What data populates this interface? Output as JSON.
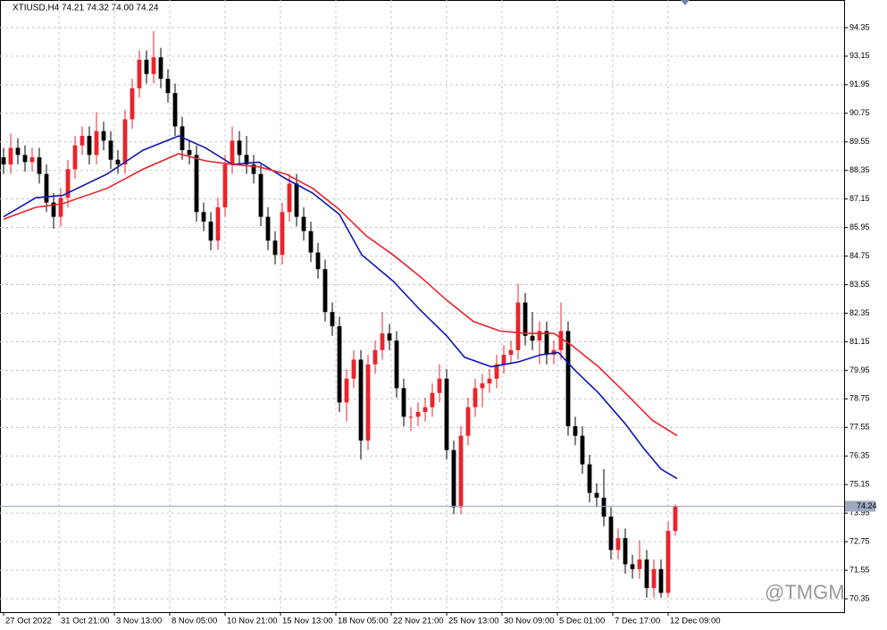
{
  "chart_data": {
    "type": "candlestick",
    "title": "XTIUSD,H4  74.21 74.32 74.00 74.24",
    "watermark": "@TMGM",
    "up_color": "#e8242c",
    "down_color": "#000000",
    "grid": true,
    "ylim": [
      69.79,
      95.51
    ],
    "yticks": [
      94.35,
      93.15,
      91.95,
      90.75,
      89.55,
      88.35,
      87.15,
      85.95,
      84.75,
      83.55,
      82.35,
      81.15,
      79.95,
      78.75,
      77.55,
      76.35,
      75.15,
      73.95,
      72.75,
      71.55,
      70.35
    ],
    "xlim": [
      -0.5,
      117.625
    ],
    "xticks": [
      {
        "value": 0,
        "label": "27 Oct 2022"
      },
      {
        "value": 7.75,
        "label": "31 Oct 21:00"
      },
      {
        "value": 15.5,
        "label": "3 Nov 13:00"
      },
      {
        "value": 23.25,
        "label": "8 Nov 05:00"
      },
      {
        "value": 31,
        "label": "10 Nov 21:00"
      },
      {
        "value": 38.75,
        "label": "15 Nov 13:00"
      },
      {
        "value": 46.5,
        "label": "18 Nov 05:00"
      },
      {
        "value": 54.25,
        "label": "22 Nov 21:00"
      },
      {
        "value": 62,
        "label": "25 Nov 13:00"
      },
      {
        "value": 69.75,
        "label": "30 Nov 09:00"
      },
      {
        "value": 77.5,
        "label": "5 Dec 01:00"
      },
      {
        "value": 85.25,
        "label": "7 Dec 17:00"
      },
      {
        "value": 93,
        "label": "12 Dec 09:00"
      }
    ],
    "last_price": 74.24,
    "last_price_color": "#9fa8c0",
    "open": [
      88.9,
      88.6,
      89.3,
      89.0,
      88.7,
      88.9,
      88.2,
      87.0,
      86.4,
      87.2,
      88.4,
      89.4,
      89.8,
      89.0,
      90.0,
      89.6,
      88.8,
      88.6,
      90.5,
      91.8,
      93.0,
      92.4,
      93.1,
      92.2,
      91.6,
      90.2,
      89.2,
      89.0,
      86.6,
      86.2,
      85.4,
      86.8,
      88.6,
      89.6,
      89.0,
      88.6,
      88.2,
      86.4,
      85.4,
      84.8,
      86.6,
      87.8,
      86.4,
      85.8,
      84.9,
      84.2,
      82.4,
      81.8,
      78.6,
      79.6,
      80.4,
      77.0,
      80.2,
      80.8,
      81.5,
      81.2,
      79.2,
      78.0,
      78.0,
      78.2,
      78.4,
      79.0,
      79.6,
      76.6,
      74.2,
      77.2,
      78.4,
      79.2,
      79.4,
      79.6,
      80.2,
      80.6,
      80.8,
      82.8,
      81.4,
      81.2,
      81.6,
      80.6,
      80.8,
      81.6,
      77.6,
      77.2,
      76.0,
      74.8,
      74.6,
      73.8,
      72.4,
      72.9,
      71.8,
      71.6,
      72.0,
      70.8,
      71.6,
      70.6,
      73.2
    ],
    "high": [
      89.3,
      89.9,
      89.7,
      89.4,
      89.3,
      89.3,
      88.6,
      87.4,
      87.6,
      88.8,
      89.8,
      90.2,
      90.2,
      90.8,
      90.4,
      90.0,
      89.2,
      90.9,
      92.2,
      93.4,
      93.4,
      94.2,
      93.5,
      92.6,
      92.0,
      90.6,
      89.6,
      89.4,
      87.0,
      86.6,
      87.2,
      89.0,
      90.2,
      90.0,
      89.8,
      89.0,
      88.6,
      86.8,
      85.8,
      87.0,
      88.2,
      88.2,
      86.8,
      86.2,
      85.3,
      84.6,
      82.8,
      82.2,
      80.0,
      80.8,
      80.8,
      80.6,
      81.2,
      82.4,
      81.9,
      81.6,
      79.6,
      78.4,
      78.6,
      78.8,
      79.4,
      80.2,
      80.0,
      77.0,
      77.6,
      78.8,
      79.6,
      79.8,
      80.0,
      80.6,
      81.0,
      81.2,
      83.6,
      83.2,
      82.4,
      82.0,
      82.0,
      81.2,
      82.8,
      82.0,
      78.0,
      77.6,
      76.4,
      75.2,
      75.8,
      74.2,
      73.3,
      73.3,
      72.2,
      72.8,
      72.4,
      72.0,
      72.0,
      73.6,
      74.32
    ],
    "low": [
      88.2,
      88.2,
      88.6,
      88.3,
      88.3,
      87.8,
      86.6,
      85.9,
      86.0,
      86.8,
      88.0,
      89.0,
      88.6,
      88.6,
      89.2,
      88.4,
      88.2,
      88.2,
      90.1,
      91.4,
      92.0,
      92.0,
      91.8,
      91.2,
      89.8,
      88.8,
      88.6,
      86.2,
      85.8,
      85.0,
      85.0,
      86.4,
      88.2,
      88.6,
      88.2,
      87.8,
      86.0,
      85.0,
      84.4,
      84.4,
      86.2,
      86.0,
      85.4,
      84.5,
      83.8,
      82.0,
      81.4,
      78.2,
      77.8,
      79.2,
      76.2,
      76.6,
      79.8,
      80.4,
      80.8,
      78.8,
      77.6,
      77.4,
      77.6,
      77.8,
      78.0,
      78.6,
      76.2,
      73.9,
      73.9,
      76.8,
      78.0,
      78.4,
      79.0,
      79.2,
      79.8,
      80.2,
      80.4,
      81.0,
      80.8,
      80.2,
      80.2,
      80.2,
      80.4,
      77.2,
      76.8,
      75.6,
      74.4,
      74.2,
      73.4,
      72.0,
      72.0,
      71.4,
      71.2,
      71.2,
      70.4,
      70.4,
      70.4,
      70.4,
      73.0
    ],
    "close": [
      88.6,
      89.3,
      89.0,
      88.7,
      88.9,
      88.2,
      87.0,
      86.4,
      87.2,
      88.4,
      89.4,
      89.8,
      89.0,
      90.0,
      89.6,
      88.8,
      88.6,
      90.5,
      91.8,
      93.0,
      92.4,
      93.1,
      92.2,
      91.6,
      90.2,
      89.2,
      89.0,
      86.6,
      86.2,
      85.4,
      86.8,
      88.6,
      89.6,
      89.0,
      88.6,
      88.2,
      86.4,
      85.4,
      84.8,
      86.6,
      87.8,
      86.4,
      85.8,
      84.9,
      84.2,
      82.4,
      81.8,
      78.6,
      79.6,
      80.4,
      77.0,
      80.2,
      80.8,
      81.5,
      81.2,
      79.2,
      78.0,
      78.0,
      78.2,
      78.4,
      79.0,
      79.6,
      76.6,
      74.2,
      77.2,
      78.4,
      79.2,
      79.4,
      79.6,
      80.2,
      80.6,
      80.8,
      82.8,
      81.4,
      81.2,
      81.6,
      80.6,
      80.8,
      81.6,
      77.6,
      77.2,
      76.0,
      74.8,
      74.6,
      73.8,
      72.4,
      72.9,
      71.8,
      71.6,
      72.0,
      70.8,
      71.6,
      70.6,
      73.2,
      74.24
    ],
    "lines": [
      {
        "color": "#0f16b4",
        "x": [
          0,
          4.5,
          8.25,
          14.5,
          19.5,
          24.5,
          28.25,
          32,
          35.75,
          39.5,
          43.25,
          47,
          50.125,
          54.5,
          58.25,
          62,
          64.5,
          68.25,
          72,
          75.125,
          77.625,
          80.125,
          83.25,
          87,
          89.5,
          92,
          94.25
        ],
        "values": [
          86.4,
          87.2,
          87.3,
          88.2,
          89.2,
          89.8,
          89.3,
          88.6,
          88.7,
          88.0,
          87.4,
          86.5,
          84.8,
          83.7,
          82.5,
          81.4,
          80.5,
          80.1,
          80.3,
          80.6,
          80.7,
          79.9,
          79.0,
          77.7,
          76.7,
          75.8,
          75.4
        ]
      },
      {
        "color": "#e8242c",
        "x": [
          0,
          4.5,
          8.25,
          14.5,
          19.5,
          24.5,
          28.25,
          32,
          35.75,
          39.5,
          43.25,
          47,
          50.75,
          54.5,
          58.25,
          62,
          65.75,
          69.5,
          73.25,
          77,
          79.5,
          83.25,
          87,
          90.75,
          94.25
        ],
        "values": [
          86.3,
          86.8,
          86.95,
          87.6,
          88.4,
          89.05,
          88.75,
          88.6,
          88.5,
          88.2,
          87.6,
          86.7,
          85.6,
          84.8,
          83.9,
          82.9,
          82.0,
          81.6,
          81.5,
          81.5,
          81.0,
          80.1,
          79.0,
          77.86,
          77.2
        ]
      }
    ]
  }
}
